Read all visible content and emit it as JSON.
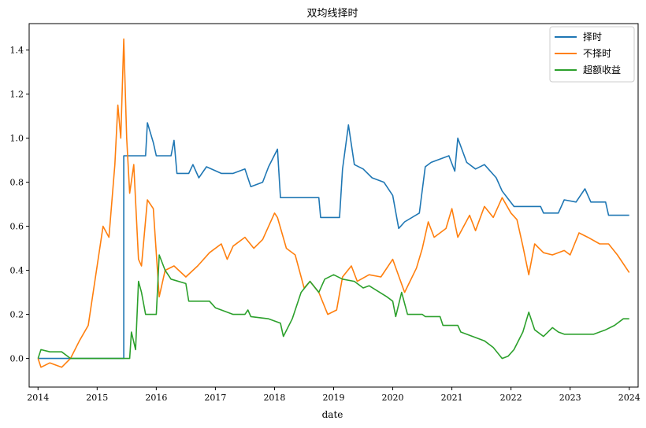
{
  "chart_data": {
    "type": "line",
    "title": "双均线择时",
    "xlabel": "date",
    "ylabel": "",
    "xlim": [
      2013.85,
      2024.15
    ],
    "ylim": [
      -0.13,
      1.52
    ],
    "grid": false,
    "legend_position": "top-right",
    "x_ticks": [
      "2014",
      "2015",
      "2016",
      "2017",
      "2018",
      "2019",
      "2020",
      "2021",
      "2022",
      "2023",
      "2024"
    ],
    "y_ticks": [
      "0.0",
      "0.2",
      "0.4",
      "0.6",
      "0.8",
      "1.0",
      "1.2",
      "1.4"
    ],
    "series": [
      {
        "name": "择时",
        "color": "#1f77b4",
        "points": [
          [
            2014.0,
            0.0
          ],
          [
            2014.3,
            0.0
          ],
          [
            2014.5,
            0.0
          ],
          [
            2015.0,
            0.0
          ],
          [
            2015.45,
            0.0
          ],
          [
            2015.45,
            0.92
          ],
          [
            2015.82,
            0.92
          ],
          [
            2015.85,
            1.07
          ],
          [
            2015.95,
            0.98
          ],
          [
            2016.0,
            0.92
          ],
          [
            2016.25,
            0.92
          ],
          [
            2016.3,
            0.99
          ],
          [
            2016.35,
            0.84
          ],
          [
            2016.55,
            0.84
          ],
          [
            2016.62,
            0.88
          ],
          [
            2016.72,
            0.82
          ],
          [
            2016.85,
            0.87
          ],
          [
            2017.1,
            0.84
          ],
          [
            2017.3,
            0.84
          ],
          [
            2017.5,
            0.86
          ],
          [
            2017.6,
            0.78
          ],
          [
            2017.8,
            0.8
          ],
          [
            2017.9,
            0.87
          ],
          [
            2018.05,
            0.95
          ],
          [
            2018.1,
            0.73
          ],
          [
            2018.75,
            0.73
          ],
          [
            2018.78,
            0.64
          ],
          [
            2019.1,
            0.64
          ],
          [
            2019.15,
            0.86
          ],
          [
            2019.25,
            1.06
          ],
          [
            2019.35,
            0.88
          ],
          [
            2019.5,
            0.86
          ],
          [
            2019.65,
            0.82
          ],
          [
            2019.85,
            0.8
          ],
          [
            2020.0,
            0.74
          ],
          [
            2020.1,
            0.59
          ],
          [
            2020.2,
            0.62
          ],
          [
            2020.45,
            0.66
          ],
          [
            2020.55,
            0.87
          ],
          [
            2020.65,
            0.89
          ],
          [
            2020.95,
            0.92
          ],
          [
            2021.05,
            0.85
          ],
          [
            2021.1,
            1.0
          ],
          [
            2021.25,
            0.89
          ],
          [
            2021.4,
            0.86
          ],
          [
            2021.55,
            0.88
          ],
          [
            2021.75,
            0.82
          ],
          [
            2021.85,
            0.76
          ],
          [
            2022.05,
            0.69
          ],
          [
            2022.5,
            0.69
          ],
          [
            2022.55,
            0.66
          ],
          [
            2022.8,
            0.66
          ],
          [
            2022.9,
            0.72
          ],
          [
            2023.1,
            0.71
          ],
          [
            2023.25,
            0.77
          ],
          [
            2023.35,
            0.71
          ],
          [
            2023.6,
            0.71
          ],
          [
            2023.65,
            0.65
          ],
          [
            2024.0,
            0.65
          ]
        ]
      },
      {
        "name": "不择时",
        "color": "#ff7f0e",
        "points": [
          [
            2014.0,
            0.0
          ],
          [
            2014.05,
            -0.04
          ],
          [
            2014.2,
            -0.02
          ],
          [
            2014.4,
            -0.04
          ],
          [
            2014.55,
            0.0
          ],
          [
            2014.7,
            0.08
          ],
          [
            2014.85,
            0.15
          ],
          [
            2015.0,
            0.42
          ],
          [
            2015.1,
            0.6
          ],
          [
            2015.2,
            0.55
          ],
          [
            2015.3,
            0.88
          ],
          [
            2015.35,
            1.15
          ],
          [
            2015.4,
            1.0
          ],
          [
            2015.45,
            1.45
          ],
          [
            2015.5,
            1.0
          ],
          [
            2015.55,
            0.75
          ],
          [
            2015.62,
            0.88
          ],
          [
            2015.7,
            0.45
          ],
          [
            2015.75,
            0.42
          ],
          [
            2015.85,
            0.72
          ],
          [
            2015.95,
            0.68
          ],
          [
            2016.05,
            0.28
          ],
          [
            2016.15,
            0.4
          ],
          [
            2016.3,
            0.42
          ],
          [
            2016.5,
            0.37
          ],
          [
            2016.7,
            0.42
          ],
          [
            2016.9,
            0.48
          ],
          [
            2017.1,
            0.52
          ],
          [
            2017.2,
            0.45
          ],
          [
            2017.3,
            0.51
          ],
          [
            2017.5,
            0.55
          ],
          [
            2017.65,
            0.5
          ],
          [
            2017.8,
            0.54
          ],
          [
            2018.0,
            0.66
          ],
          [
            2018.05,
            0.64
          ],
          [
            2018.2,
            0.5
          ],
          [
            2018.35,
            0.47
          ],
          [
            2018.5,
            0.32
          ],
          [
            2018.6,
            0.35
          ],
          [
            2018.75,
            0.3
          ],
          [
            2018.9,
            0.2
          ],
          [
            2019.05,
            0.22
          ],
          [
            2019.15,
            0.37
          ],
          [
            2019.3,
            0.42
          ],
          [
            2019.4,
            0.35
          ],
          [
            2019.6,
            0.38
          ],
          [
            2019.8,
            0.37
          ],
          [
            2020.0,
            0.45
          ],
          [
            2020.2,
            0.3
          ],
          [
            2020.4,
            0.41
          ],
          [
            2020.5,
            0.5
          ],
          [
            2020.6,
            0.62
          ],
          [
            2020.7,
            0.55
          ],
          [
            2020.9,
            0.59
          ],
          [
            2021.0,
            0.68
          ],
          [
            2021.1,
            0.55
          ],
          [
            2021.3,
            0.65
          ],
          [
            2021.4,
            0.58
          ],
          [
            2021.55,
            0.69
          ],
          [
            2021.7,
            0.64
          ],
          [
            2021.85,
            0.73
          ],
          [
            2022.0,
            0.66
          ],
          [
            2022.1,
            0.63
          ],
          [
            2022.2,
            0.51
          ],
          [
            2022.3,
            0.38
          ],
          [
            2022.4,
            0.52
          ],
          [
            2022.55,
            0.48
          ],
          [
            2022.7,
            0.47
          ],
          [
            2022.9,
            0.49
          ],
          [
            2023.0,
            0.47
          ],
          [
            2023.15,
            0.57
          ],
          [
            2023.3,
            0.55
          ],
          [
            2023.5,
            0.52
          ],
          [
            2023.65,
            0.52
          ],
          [
            2023.8,
            0.47
          ],
          [
            2024.0,
            0.39
          ]
        ]
      },
      {
        "name": "超额收益",
        "color": "#2ca02c",
        "points": [
          [
            2014.0,
            0.0
          ],
          [
            2014.05,
            0.04
          ],
          [
            2014.2,
            0.03
          ],
          [
            2014.4,
            0.03
          ],
          [
            2014.55,
            0.0
          ],
          [
            2015.55,
            0.0
          ],
          [
            2015.58,
            0.12
          ],
          [
            2015.65,
            0.04
          ],
          [
            2015.7,
            0.35
          ],
          [
            2015.75,
            0.3
          ],
          [
            2015.82,
            0.2
          ],
          [
            2016.0,
            0.2
          ],
          [
            2016.05,
            0.47
          ],
          [
            2016.15,
            0.4
          ],
          [
            2016.25,
            0.36
          ],
          [
            2016.5,
            0.34
          ],
          [
            2016.55,
            0.26
          ],
          [
            2016.9,
            0.26
          ],
          [
            2017.0,
            0.23
          ],
          [
            2017.1,
            0.22
          ],
          [
            2017.3,
            0.2
          ],
          [
            2017.5,
            0.2
          ],
          [
            2017.55,
            0.22
          ],
          [
            2017.6,
            0.19
          ],
          [
            2017.9,
            0.18
          ],
          [
            2018.1,
            0.16
          ],
          [
            2018.15,
            0.1
          ],
          [
            2018.3,
            0.18
          ],
          [
            2018.45,
            0.3
          ],
          [
            2018.6,
            0.35
          ],
          [
            2018.75,
            0.3
          ],
          [
            2018.85,
            0.36
          ],
          [
            2019.0,
            0.38
          ],
          [
            2019.15,
            0.36
          ],
          [
            2019.35,
            0.35
          ],
          [
            2019.5,
            0.32
          ],
          [
            2019.6,
            0.33
          ],
          [
            2019.9,
            0.28
          ],
          [
            2020.0,
            0.26
          ],
          [
            2020.05,
            0.19
          ],
          [
            2020.15,
            0.3
          ],
          [
            2020.25,
            0.2
          ],
          [
            2020.5,
            0.2
          ],
          [
            2020.55,
            0.19
          ],
          [
            2020.8,
            0.19
          ],
          [
            2020.85,
            0.15
          ],
          [
            2021.1,
            0.15
          ],
          [
            2021.15,
            0.12
          ],
          [
            2021.35,
            0.1
          ],
          [
            2021.55,
            0.08
          ],
          [
            2021.7,
            0.05
          ],
          [
            2021.85,
            0.0
          ],
          [
            2021.95,
            0.01
          ],
          [
            2022.05,
            0.04
          ],
          [
            2022.2,
            0.12
          ],
          [
            2022.3,
            0.21
          ],
          [
            2022.4,
            0.13
          ],
          [
            2022.55,
            0.1
          ],
          [
            2022.7,
            0.14
          ],
          [
            2022.8,
            0.12
          ],
          [
            2022.9,
            0.11
          ],
          [
            2023.4,
            0.11
          ],
          [
            2023.6,
            0.13
          ],
          [
            2023.75,
            0.15
          ],
          [
            2023.9,
            0.18
          ],
          [
            2024.0,
            0.18
          ]
        ]
      }
    ]
  }
}
